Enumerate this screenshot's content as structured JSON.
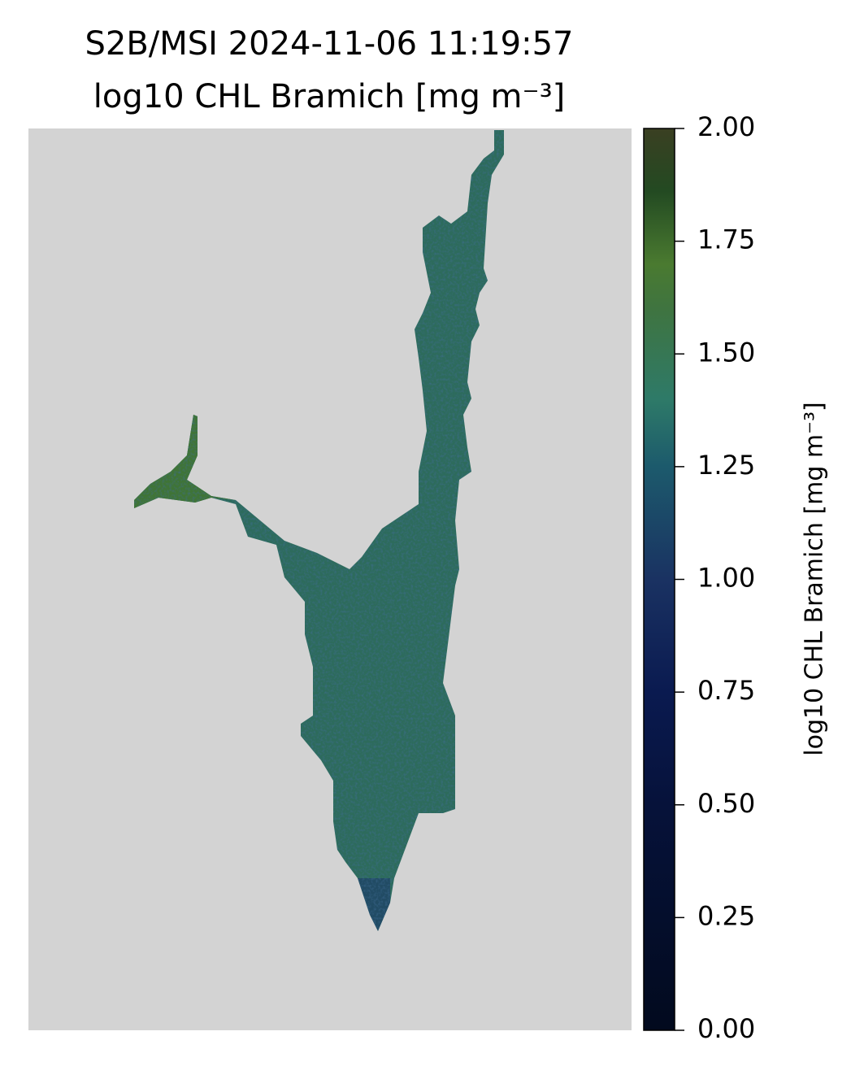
{
  "title": [
    "S2B/MSI 2024-11-06 11:19:57",
    "log10 CHL Bramich [mg m⁻³]"
  ],
  "colorbar": {
    "label": "log10 CHL Bramich [mg m⁻³]",
    "lim": [
      0,
      2
    ],
    "ticks": [
      {
        "value": 0,
        "label": "0.00"
      },
      {
        "value": 0.25,
        "label": "0.25"
      },
      {
        "value": 0.5,
        "label": "0.50"
      },
      {
        "value": 0.75,
        "label": "0.75"
      },
      {
        "value": 1,
        "label": "1.00"
      },
      {
        "value": 1.25,
        "label": "1.25"
      },
      {
        "value": 1.5,
        "label": "1.50"
      },
      {
        "value": 1.75,
        "label": "1.75"
      },
      {
        "value": 2,
        "label": "2.00"
      }
    ]
  }
}
